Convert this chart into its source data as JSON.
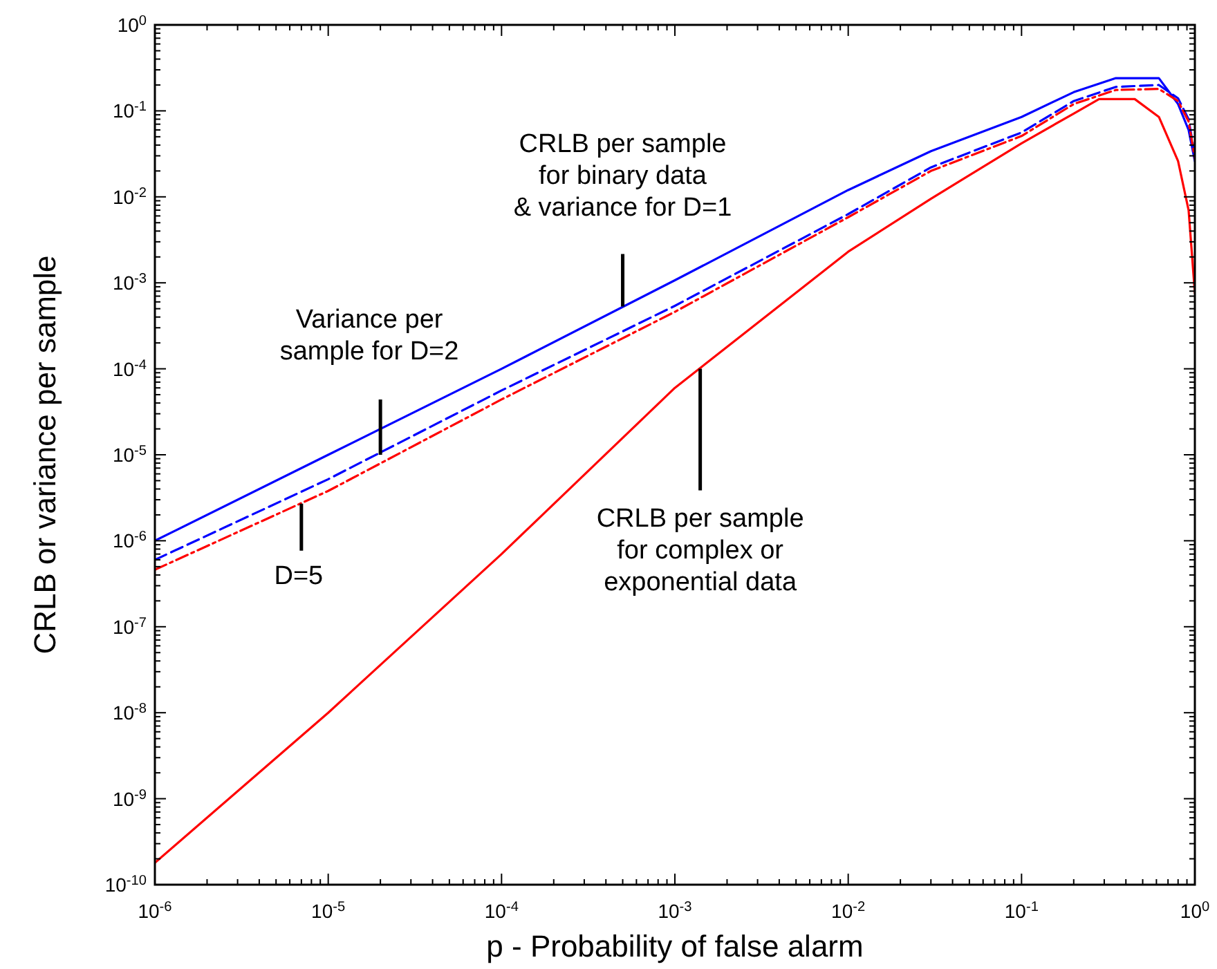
{
  "chart_data": {
    "type": "line",
    "xlabel": "p - Probability of false alarm",
    "ylabel": "CRLB or variance per sample",
    "log": "xy",
    "grid": false,
    "xlim": [
      1e-06,
      1
    ],
    "ylim": [
      1e-10,
      1
    ],
    "xticks": [
      {
        "value": 1e-06,
        "label": "10$^{-6}$"
      },
      {
        "value": 1e-05,
        "label": "10$^{-5}$"
      },
      {
        "value": 0.0001,
        "label": "10$^{-4}$"
      },
      {
        "value": 0.001,
        "label": "10$^{-3}$"
      },
      {
        "value": 0.01,
        "label": "10$^{-2}$"
      },
      {
        "value": 0.1,
        "label": "10$^{-1}$"
      },
      {
        "value": 1,
        "label": "10$^{0}$"
      }
    ],
    "yticks": [
      {
        "value": 1e-10,
        "label": "10$^{-10}$"
      },
      {
        "value": 1e-09,
        "label": "10$^{-9}$"
      },
      {
        "value": 1e-08,
        "label": "10$^{-8}$"
      },
      {
        "value": 1e-07,
        "label": "10$^{-7}$"
      },
      {
        "value": 1e-06,
        "label": "10$^{-6}$"
      },
      {
        "value": 1e-05,
        "label": "10$^{-5}$"
      },
      {
        "value": 0.0001,
        "label": "10$^{-4}$"
      },
      {
        "value": 0.001,
        "label": "10$^{-3}$"
      },
      {
        "value": 0.01,
        "label": "10$^{-2}$"
      },
      {
        "value": 0.1,
        "label": "10$^{-1}$"
      },
      {
        "value": 1,
        "label": "10$^{0}$"
      }
    ],
    "series": [
      {
        "color": "#0000ff",
        "line_style": "solid",
        "x": [
          1e-06,
          1e-05,
          0.0001,
          0.001,
          0.01,
          0.03,
          0.1,
          0.2,
          0.35,
          0.62,
          0.8,
          0.92,
          1
        ],
        "values": [
          1e-06,
          1e-05,
          0.0001,
          0.00107,
          0.012,
          0.034,
          0.085,
          0.165,
          0.24,
          0.24,
          0.12,
          0.06,
          0.026
        ]
      },
      {
        "color": "#0000ff",
        "line_style": "dashed",
        "x": [
          1e-06,
          1e-05,
          0.0001,
          0.001,
          0.01,
          0.03,
          0.1,
          0.2,
          0.35,
          0.62,
          0.8,
          0.92,
          1
        ],
        "values": [
          6e-07,
          5.2e-06,
          5.6e-05,
          0.00054,
          0.0063,
          0.022,
          0.056,
          0.13,
          0.19,
          0.2,
          0.14,
          0.08,
          0.03
        ]
      },
      {
        "color": "#ff0000",
        "line_style": "dashdot",
        "x": [
          1e-06,
          1e-05,
          0.0001,
          0.001,
          0.01,
          0.03,
          0.1,
          0.2,
          0.35,
          0.62,
          0.8,
          0.92,
          1
        ],
        "values": [
          4.6e-07,
          3.8e-06,
          4.4e-05,
          0.00046,
          0.0058,
          0.02,
          0.051,
          0.12,
          0.175,
          0.18,
          0.13,
          0.075,
          0.028
        ]
      },
      {
        "color": "#ff0000",
        "line_style": "solid",
        "x": [
          1e-06,
          1e-05,
          0.0001,
          0.001,
          0.01,
          0.03,
          0.1,
          0.2,
          0.28,
          0.45,
          0.62,
          0.8,
          0.92,
          1
        ],
        "values": [
          1.8e-10,
          1e-08,
          7e-07,
          6e-05,
          0.0023,
          0.0095,
          0.042,
          0.093,
          0.137,
          0.137,
          0.085,
          0.026,
          0.007,
          0.00076
        ]
      }
    ],
    "annotations": [
      {
        "text": "CRLB per sample\nfor binary data\n& variance for D=1",
        "x": 0.0005,
        "y": 0.00053
      },
      {
        "text": "Variance per\nsample for D=2",
        "x": 2e-05,
        "y": 1e-05
      },
      {
        "text": "D=5",
        "x": 7e-06,
        "y": 2.7e-06
      },
      {
        "text": "CRLB per sample\nfor complex or\nexponential data",
        "x": 0.0014,
        "y": 0.0001
      }
    ]
  }
}
